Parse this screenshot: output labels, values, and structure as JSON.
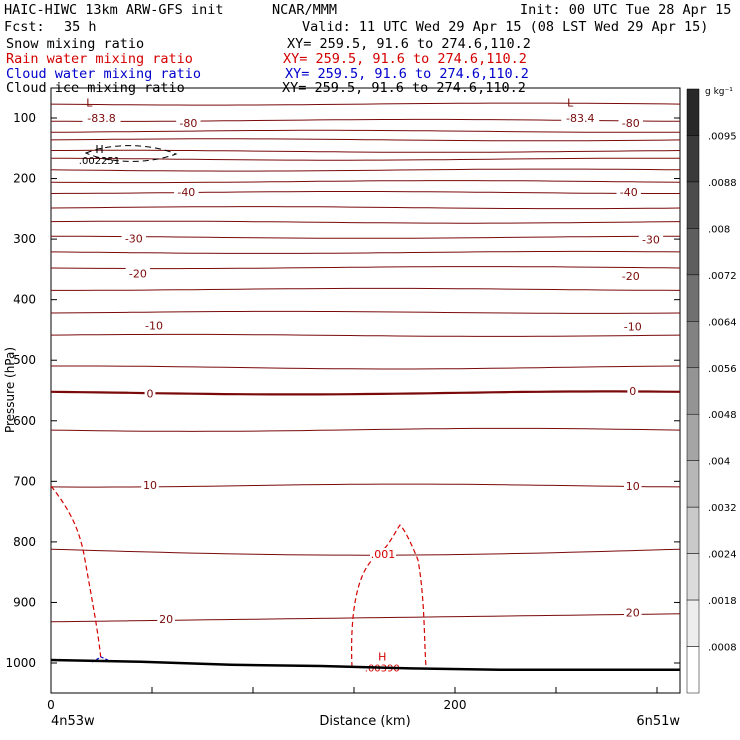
{
  "header": {
    "title": "HAIC-HIWC 13km ARW-GFS init",
    "org": "NCAR/MMM",
    "init": "Init: 00 UTC Tue 28 Apr 15",
    "fcst_label": "Fcst:",
    "fcst_value": "35 h",
    "valid": "Valid: 11 UTC Wed 29 Apr 15 (08 LST Wed 29 Apr 15)"
  },
  "fields": [
    {
      "name": "Snow mixing ratio",
      "xy": "XY= 259.5, 91.6 to 274.6,110.2",
      "color": "#000000"
    },
    {
      "name": "Rain water mixing ratio",
      "xy": "XY= 259.5, 91.6 to 274.6,110.2",
      "color": "#d40000"
    },
    {
      "name": "Cloud water mixing ratio",
      "xy": "XY= 259.5, 91.6 to 274.6,110.2",
      "color": "#0000cc"
    },
    {
      "name": "Cloud ice mixing ratio",
      "xy": "XY= 259.5, 91.6 to 274.6,110.2",
      "color": "#000000"
    }
  ],
  "colorbar": {
    "unit": "g kg⁻¹",
    "labels": [
      ".0095",
      ".0088",
      ".008",
      ".0072",
      ".0064",
      ".0056",
      ".0048",
      ".004",
      ".0032",
      ".0024",
      ".0018",
      ".0008"
    ]
  },
  "chart_data": {
    "type": "contour",
    "xlabel": "Distance (km)",
    "ylabel": "Pressure (hPa)",
    "x_ticks": [
      0,
      200
    ],
    "xlim": [
      0,
      310
    ],
    "y_ticks": [
      100,
      200,
      300,
      400,
      500,
      600,
      700,
      800,
      900,
      1000
    ],
    "ylim": [
      1050,
      50
    ],
    "left_endpoint": "4n53w",
    "right_endpoint": "6n51w",
    "temperature_contours": {
      "color": "#7a0a0a",
      "levels_hpa": [
        77,
        104,
        122,
        136,
        155,
        168,
        186,
        205,
        223,
        248,
        272,
        297,
        322,
        347,
        383,
        421,
        459,
        512,
        554,
        615,
        707,
        812,
        932
      ],
      "labels": [
        {
          "text": "-83.8",
          "x": 25,
          "p": 100
        },
        {
          "text": "-83.4",
          "x": 262,
          "p": 100
        },
        {
          "text": "-80",
          "x": 68,
          "p": 108
        },
        {
          "text": "-80",
          "x": 287,
          "p": 108
        },
        {
          "text": "-40",
          "x": 67,
          "p": 222
        },
        {
          "text": "-40",
          "x": 286,
          "p": 222
        },
        {
          "text": "-30",
          "x": 41,
          "p": 299
        },
        {
          "text": "-30",
          "x": 297,
          "p": 301
        },
        {
          "text": "-20",
          "x": 43,
          "p": 357
        },
        {
          "text": "-20",
          "x": 287,
          "p": 361
        },
        {
          "text": "-10",
          "x": 51,
          "p": 443
        },
        {
          "text": "-10",
          "x": 288,
          "p": 444
        },
        {
          "text": "0",
          "x": 49,
          "p": 555
        },
        {
          "text": "0",
          "x": 288,
          "p": 551
        },
        {
          "text": "10",
          "x": 49,
          "p": 706
        },
        {
          "text": "10",
          "x": 288,
          "p": 708
        },
        {
          "text": "20",
          "x": 57,
          "p": 927
        },
        {
          "text": "20",
          "x": 288,
          "p": 917
        }
      ]
    },
    "extrema": [
      {
        "marker": "L",
        "x": 19,
        "p": 81,
        "color": "#7a0a0a"
      },
      {
        "marker": "L",
        "x": 257,
        "p": 81,
        "color": "#7a0a0a"
      },
      {
        "marker": "H",
        "label": ".002251",
        "x": 24,
        "p": 158,
        "color": "#000000"
      },
      {
        "marker": "H",
        "label": ".00390",
        "x": 164,
        "p": 996,
        "color": "#d40000"
      }
    ],
    "rain_contour_label": ".001",
    "terrain_pressure_hpa": [
      995,
      998,
      1003,
      1005,
      1009,
      1011,
      1011,
      1011
    ]
  }
}
